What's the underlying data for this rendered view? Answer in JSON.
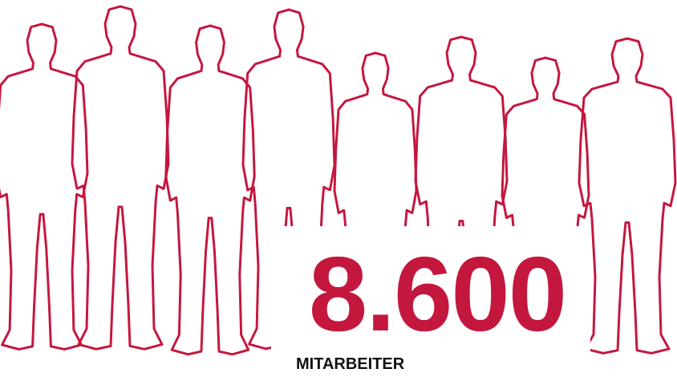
{
  "headline": {
    "value": "8.600",
    "label": "MITARBEITER"
  }
}
